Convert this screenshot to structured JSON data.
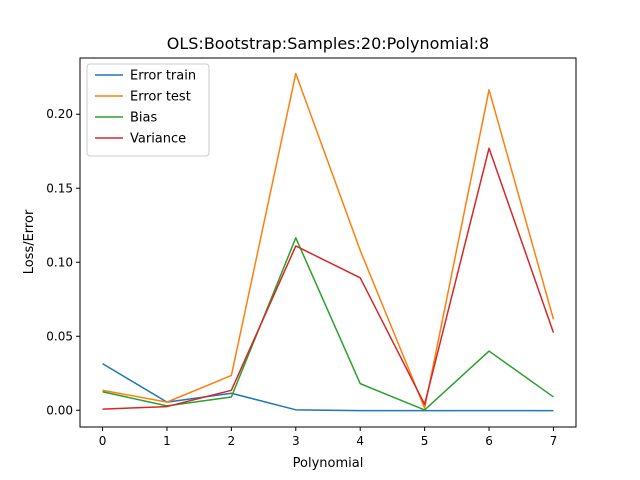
{
  "chart_data": {
    "type": "line",
    "title": "OLS:Bootstrap:Samples:20:Polynomial:8",
    "xlabel": "Polynomial",
    "ylabel": "Loss/Error",
    "x": [
      0,
      1,
      2,
      3,
      4,
      5,
      6,
      7
    ],
    "xticks": [
      "0",
      "1",
      "2",
      "3",
      "4",
      "5",
      "6",
      "7"
    ],
    "yticks": [
      "0.00",
      "0.05",
      "0.10",
      "0.15",
      "0.20"
    ],
    "ytick_values": [
      0.0,
      0.05,
      0.1,
      0.15,
      0.2
    ],
    "xlim": [
      -0.35,
      7.35
    ],
    "ylim": [
      -0.0113,
      0.238
    ],
    "grid": false,
    "legend_position": "top-left",
    "series": [
      {
        "name": "Error train",
        "color": "#1f77b4",
        "values": [
          0.0315,
          0.0055,
          0.0115,
          0.0003,
          -0.0002,
          -0.0002,
          -0.0002,
          -0.0002
        ]
      },
      {
        "name": "Error test",
        "color": "#ff7f0e",
        "values": [
          0.0135,
          0.0055,
          0.0235,
          0.2275,
          0.108,
          0.0015,
          0.2165,
          0.0615
        ]
      },
      {
        "name": "Bias",
        "color": "#2ca02c",
        "values": [
          0.0125,
          0.003,
          0.009,
          0.1165,
          0.018,
          0.0002,
          0.04,
          0.009
        ]
      },
      {
        "name": "Variance",
        "color": "#d62728",
        "values": [
          0.0008,
          0.0025,
          0.0135,
          0.111,
          0.0895,
          0.004,
          0.177,
          0.0525
        ]
      }
    ]
  }
}
